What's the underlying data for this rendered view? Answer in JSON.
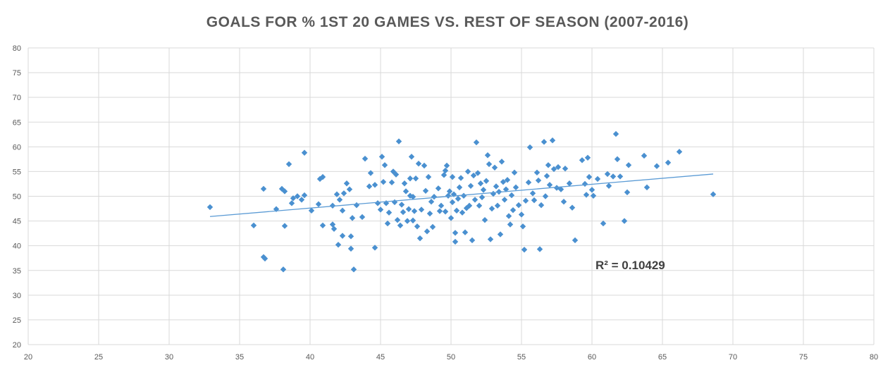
{
  "chart_data": {
    "type": "scatter",
    "title": "GOALS FOR % 1ST 20 GAMES VS. REST OF SEASON (2007-2016)",
    "xlabel": "",
    "ylabel": "",
    "xlim": [
      20,
      80
    ],
    "ylim": [
      20,
      80
    ],
    "x_ticks": [
      "20",
      "25",
      "30",
      "35",
      "40",
      "45",
      "50",
      "55",
      "60",
      "65",
      "70",
      "75",
      "80"
    ],
    "y_ticks": [
      "20",
      "25",
      "30",
      "35",
      "40",
      "45",
      "50",
      "55",
      "60",
      "65",
      "70",
      "75",
      "80"
    ],
    "grid": true,
    "marker_color": "#4a90d0",
    "trendline_color": "#5b9bd5",
    "trendline": {
      "x": [
        32.9,
        68.6
      ],
      "y": [
        45.9,
        54.5
      ]
    },
    "r_squared_label": "R² = 0.10429",
    "points": [
      [
        32.9,
        47.8
      ],
      [
        36.0,
        44.1
      ],
      [
        36.7,
        37.7
      ],
      [
        36.8,
        37.4
      ],
      [
        36.7,
        51.5
      ],
      [
        37.6,
        47.4
      ],
      [
        38.0,
        51.5
      ],
      [
        38.2,
        51.0
      ],
      [
        38.2,
        44.0
      ],
      [
        38.1,
        35.2
      ],
      [
        38.5,
        56.5
      ],
      [
        38.7,
        48.6
      ],
      [
        38.8,
        49.6
      ],
      [
        39.1,
        50.0
      ],
      [
        39.4,
        49.3
      ],
      [
        39.6,
        58.8
      ],
      [
        39.6,
        50.2
      ],
      [
        40.1,
        47.1
      ],
      [
        40.6,
        48.4
      ],
      [
        40.7,
        53.5
      ],
      [
        40.9,
        53.9
      ],
      [
        40.9,
        44.1
      ],
      [
        41.6,
        44.3
      ],
      [
        41.7,
        43.4
      ],
      [
        41.6,
        48.1
      ],
      [
        41.9,
        50.4
      ],
      [
        42.1,
        49.3
      ],
      [
        42.0,
        40.2
      ],
      [
        42.3,
        42.0
      ],
      [
        42.3,
        47.1
      ],
      [
        42.4,
        50.6
      ],
      [
        42.6,
        52.6
      ],
      [
        42.8,
        51.4
      ],
      [
        42.9,
        41.9
      ],
      [
        42.9,
        39.4
      ],
      [
        43.0,
        45.6
      ],
      [
        43.1,
        35.2
      ],
      [
        43.3,
        48.2
      ],
      [
        43.7,
        45.8
      ],
      [
        43.9,
        57.6
      ],
      [
        44.2,
        52.0
      ],
      [
        44.3,
        54.7
      ],
      [
        44.6,
        52.3
      ],
      [
        44.6,
        39.6
      ],
      [
        44.8,
        48.6
      ],
      [
        45.0,
        47.3
      ],
      [
        45.1,
        58.0
      ],
      [
        45.2,
        52.9
      ],
      [
        45.3,
        56.3
      ],
      [
        45.4,
        48.6
      ],
      [
        45.5,
        44.5
      ],
      [
        45.6,
        46.7
      ],
      [
        45.8,
        52.8
      ],
      [
        45.9,
        55.0
      ],
      [
        46.0,
        48.8
      ],
      [
        46.1,
        54.4
      ],
      [
        46.2,
        45.2
      ],
      [
        46.3,
        61.1
      ],
      [
        46.4,
        44.1
      ],
      [
        46.5,
        48.3
      ],
      [
        46.6,
        46.8
      ],
      [
        46.7,
        52.6
      ],
      [
        46.8,
        51.0
      ],
      [
        46.9,
        45.0
      ],
      [
        47.0,
        47.4
      ],
      [
        47.1,
        50.1
      ],
      [
        47.1,
        53.6
      ],
      [
        47.2,
        58.0
      ],
      [
        47.3,
        49.9
      ],
      [
        47.3,
        45.1
      ],
      [
        47.4,
        47.0
      ],
      [
        47.5,
        53.6
      ],
      [
        47.6,
        43.9
      ],
      [
        47.7,
        56.6
      ],
      [
        47.8,
        41.5
      ],
      [
        47.9,
        47.3
      ],
      [
        48.1,
        56.2
      ],
      [
        48.2,
        51.1
      ],
      [
        48.3,
        42.9
      ],
      [
        48.4,
        53.9
      ],
      [
        48.5,
        46.5
      ],
      [
        48.6,
        48.9
      ],
      [
        48.7,
        43.8
      ],
      [
        48.8,
        49.9
      ],
      [
        49.1,
        51.6
      ],
      [
        49.2,
        47.0
      ],
      [
        49.3,
        48.1
      ],
      [
        49.5,
        54.3
      ],
      [
        49.6,
        55.2
      ],
      [
        49.6,
        46.9
      ],
      [
        49.7,
        56.2
      ],
      [
        49.8,
        50.1
      ],
      [
        49.9,
        51.0
      ],
      [
        50.0,
        45.6
      ],
      [
        50.1,
        48.8
      ],
      [
        50.1,
        53.9
      ],
      [
        50.2,
        50.4
      ],
      [
        50.3,
        42.6
      ],
      [
        50.3,
        40.8
      ],
      [
        50.4,
        47.1
      ],
      [
        50.5,
        49.5
      ],
      [
        50.6,
        51.8
      ],
      [
        50.7,
        53.7
      ],
      [
        50.8,
        46.7
      ],
      [
        50.9,
        50.1
      ],
      [
        51.0,
        42.7
      ],
      [
        51.1,
        47.6
      ],
      [
        51.2,
        55.0
      ],
      [
        51.3,
        48.1
      ],
      [
        51.4,
        52.1
      ],
      [
        51.5,
        41.1
      ],
      [
        51.6,
        54.2
      ],
      [
        51.7,
        49.3
      ],
      [
        51.8,
        60.9
      ],
      [
        51.9,
        54.7
      ],
      [
        52.0,
        48.1
      ],
      [
        52.1,
        52.6
      ],
      [
        52.2,
        49.8
      ],
      [
        52.3,
        51.3
      ],
      [
        52.4,
        45.2
      ],
      [
        52.5,
        53.1
      ],
      [
        52.6,
        58.3
      ],
      [
        52.7,
        56.5
      ],
      [
        52.8,
        41.3
      ],
      [
        52.9,
        47.5
      ],
      [
        53.0,
        50.5
      ],
      [
        53.1,
        55.8
      ],
      [
        53.2,
        52.0
      ],
      [
        53.3,
        48.1
      ],
      [
        53.4,
        50.9
      ],
      [
        53.5,
        42.3
      ],
      [
        53.6,
        57.0
      ],
      [
        53.7,
        52.9
      ],
      [
        53.8,
        49.3
      ],
      [
        53.9,
        51.4
      ],
      [
        54.0,
        53.3
      ],
      [
        54.1,
        46.0
      ],
      [
        54.2,
        44.3
      ],
      [
        54.3,
        50.2
      ],
      [
        54.4,
        47.2
      ],
      [
        54.5,
        54.8
      ],
      [
        54.6,
        51.8
      ],
      [
        54.8,
        48.2
      ],
      [
        55.0,
        46.3
      ],
      [
        55.1,
        43.9
      ],
      [
        55.2,
        39.2
      ],
      [
        55.3,
        49.1
      ],
      [
        55.5,
        52.8
      ],
      [
        55.6,
        59.9
      ],
      [
        55.8,
        50.6
      ],
      [
        55.9,
        49.2
      ],
      [
        56.1,
        54.8
      ],
      [
        56.2,
        53.2
      ],
      [
        56.3,
        39.3
      ],
      [
        56.4,
        48.2
      ],
      [
        56.6,
        61.0
      ],
      [
        56.7,
        50.0
      ],
      [
        56.8,
        54.1
      ],
      [
        56.9,
        56.3
      ],
      [
        57.0,
        52.3
      ],
      [
        57.2,
        61.3
      ],
      [
        57.3,
        55.5
      ],
      [
        57.5,
        51.7
      ],
      [
        57.6,
        55.9
      ],
      [
        57.8,
        51.4
      ],
      [
        58.0,
        48.9
      ],
      [
        58.1,
        55.6
      ],
      [
        58.4,
        52.6
      ],
      [
        58.6,
        47.7
      ],
      [
        58.8,
        41.1
      ],
      [
        59.3,
        57.3
      ],
      [
        59.5,
        52.5
      ],
      [
        59.6,
        50.3
      ],
      [
        59.7,
        57.8
      ],
      [
        59.8,
        53.9
      ],
      [
        60.0,
        51.3
      ],
      [
        60.1,
        50.1
      ],
      [
        60.4,
        53.5
      ],
      [
        60.8,
        44.5
      ],
      [
        61.1,
        54.5
      ],
      [
        61.2,
        52.1
      ],
      [
        61.5,
        54.0
      ],
      [
        61.7,
        62.6
      ],
      [
        61.8,
        57.5
      ],
      [
        62.0,
        54.0
      ],
      [
        62.3,
        45.0
      ],
      [
        62.5,
        50.8
      ],
      [
        62.6,
        56.3
      ],
      [
        63.7,
        58.2
      ],
      [
        63.9,
        51.8
      ],
      [
        64.6,
        56.1
      ],
      [
        65.4,
        56.8
      ],
      [
        66.2,
        59.0
      ],
      [
        68.6,
        50.4
      ]
    ]
  }
}
